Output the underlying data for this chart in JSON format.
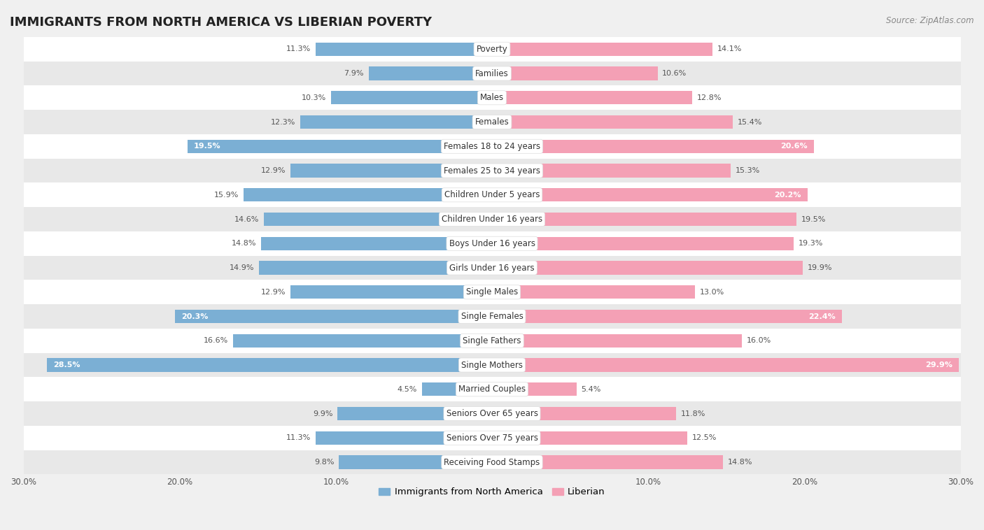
{
  "title": "IMMIGRANTS FROM NORTH AMERICA VS LIBERIAN POVERTY",
  "source": "Source: ZipAtlas.com",
  "categories": [
    "Poverty",
    "Families",
    "Males",
    "Females",
    "Females 18 to 24 years",
    "Females 25 to 34 years",
    "Children Under 5 years",
    "Children Under 16 years",
    "Boys Under 16 years",
    "Girls Under 16 years",
    "Single Males",
    "Single Females",
    "Single Fathers",
    "Single Mothers",
    "Married Couples",
    "Seniors Over 65 years",
    "Seniors Over 75 years",
    "Receiving Food Stamps"
  ],
  "left_values": [
    11.3,
    7.9,
    10.3,
    12.3,
    19.5,
    12.9,
    15.9,
    14.6,
    14.8,
    14.9,
    12.9,
    20.3,
    16.6,
    28.5,
    4.5,
    9.9,
    11.3,
    9.8
  ],
  "right_values": [
    14.1,
    10.6,
    12.8,
    15.4,
    20.6,
    15.3,
    20.2,
    19.5,
    19.3,
    19.9,
    13.0,
    22.4,
    16.0,
    29.9,
    5.4,
    11.8,
    12.5,
    14.8
  ],
  "left_color": "#7bafd4",
  "right_color": "#f4a0b5",
  "left_label": "Immigrants from North America",
  "right_label": "Liberian",
  "bar_height": 0.55,
  "xlim": 30.0,
  "row_colors": [
    "#ffffff",
    "#e8e8e8"
  ],
  "title_fontsize": 13,
  "label_fontsize": 8.5,
  "value_fontsize": 8.0,
  "source_fontsize": 8.5,
  "bg_color": "#f0f0f0"
}
